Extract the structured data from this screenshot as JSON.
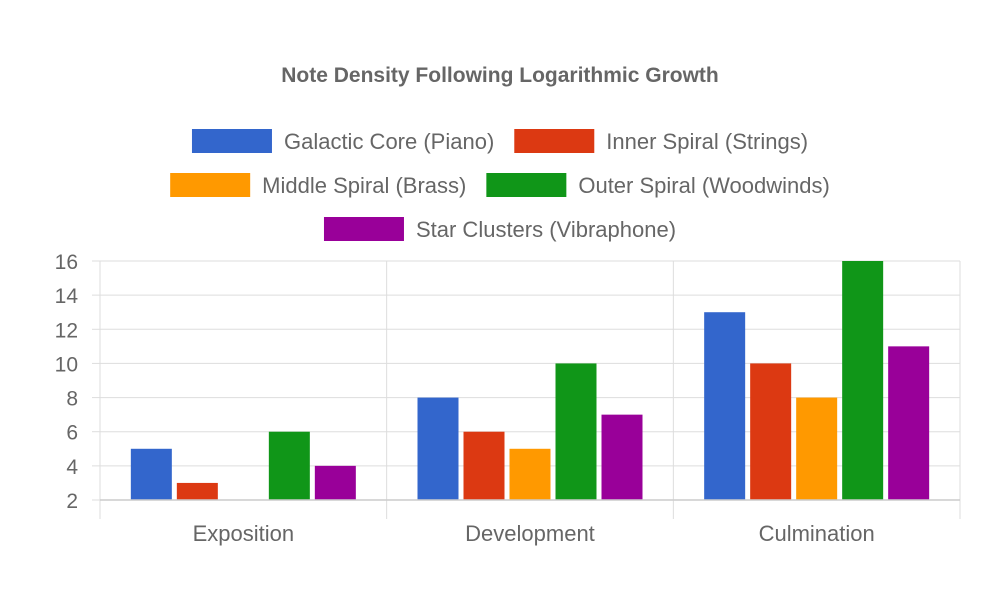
{
  "chart_data": {
    "type": "bar",
    "title": "Note Density Following Logarithmic Growth",
    "categories": [
      "Exposition",
      "Development",
      "Culmination"
    ],
    "series": [
      {
        "name": "Galactic Core (Piano)",
        "color": "#3366cc",
        "values": [
          5,
          8,
          13
        ]
      },
      {
        "name": "Inner Spiral (Strings)",
        "color": "#dc3912",
        "values": [
          3,
          6,
          10
        ]
      },
      {
        "name": "Middle Spiral (Brass)",
        "color": "#ff9900",
        "values": [
          2,
          5,
          8
        ]
      },
      {
        "name": "Outer Spiral (Woodwinds)",
        "color": "#109618",
        "values": [
          6,
          10,
          16
        ]
      },
      {
        "name": "Star Clusters (Vibraphone)",
        "color": "#990099",
        "values": [
          4,
          7,
          11
        ]
      }
    ],
    "ylim": [
      2,
      16
    ],
    "yticks": [
      2,
      4,
      6,
      8,
      10,
      12,
      14,
      16
    ],
    "xlabel": "",
    "ylabel": "",
    "grid": true,
    "legend_position": "top"
  }
}
